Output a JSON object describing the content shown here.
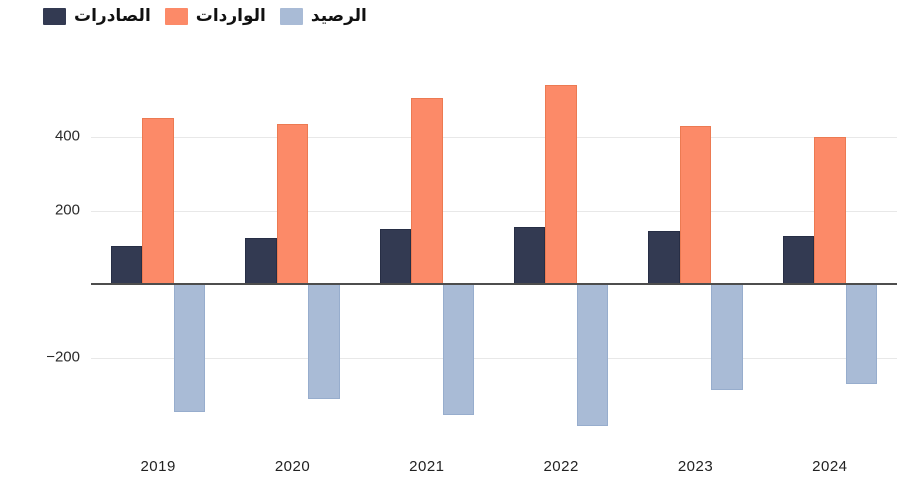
{
  "chart_data": {
    "type": "bar",
    "categories": [
      "2019",
      "2020",
      "2021",
      "2022",
      "2023",
      "2024"
    ],
    "series": [
      {
        "key": "exports",
        "name": "الصادرات",
        "color": "#333a52",
        "border_color": "#272e45",
        "values": [
          105,
          125,
          150,
          155,
          145,
          130
        ]
      },
      {
        "key": "imports",
        "name": "الواردات",
        "color": "#fc8a68",
        "border_color": "#ec7a52",
        "values": [
          450,
          435,
          505,
          540,
          430,
          400
        ]
      },
      {
        "key": "balance",
        "name": "الرصيد",
        "color": "#a9bbd6",
        "border_color": "#97adcd",
        "values": [
          -345,
          -310,
          -355,
          -385,
          -285,
          -270
        ]
      }
    ],
    "yticks": [
      {
        "label": "400",
        "value": 400
      },
      {
        "label": "200",
        "value": 200
      },
      {
        "label": "−200",
        "value": -200
      }
    ],
    "ylim": [
      -400,
      600
    ],
    "zero_line": true,
    "grid": true,
    "legend_position": "top-left",
    "axis_colors": {
      "grid": "#e8e8e8",
      "zero_line": "#4d4d4d",
      "tick_text": "#2b2b2b"
    }
  }
}
